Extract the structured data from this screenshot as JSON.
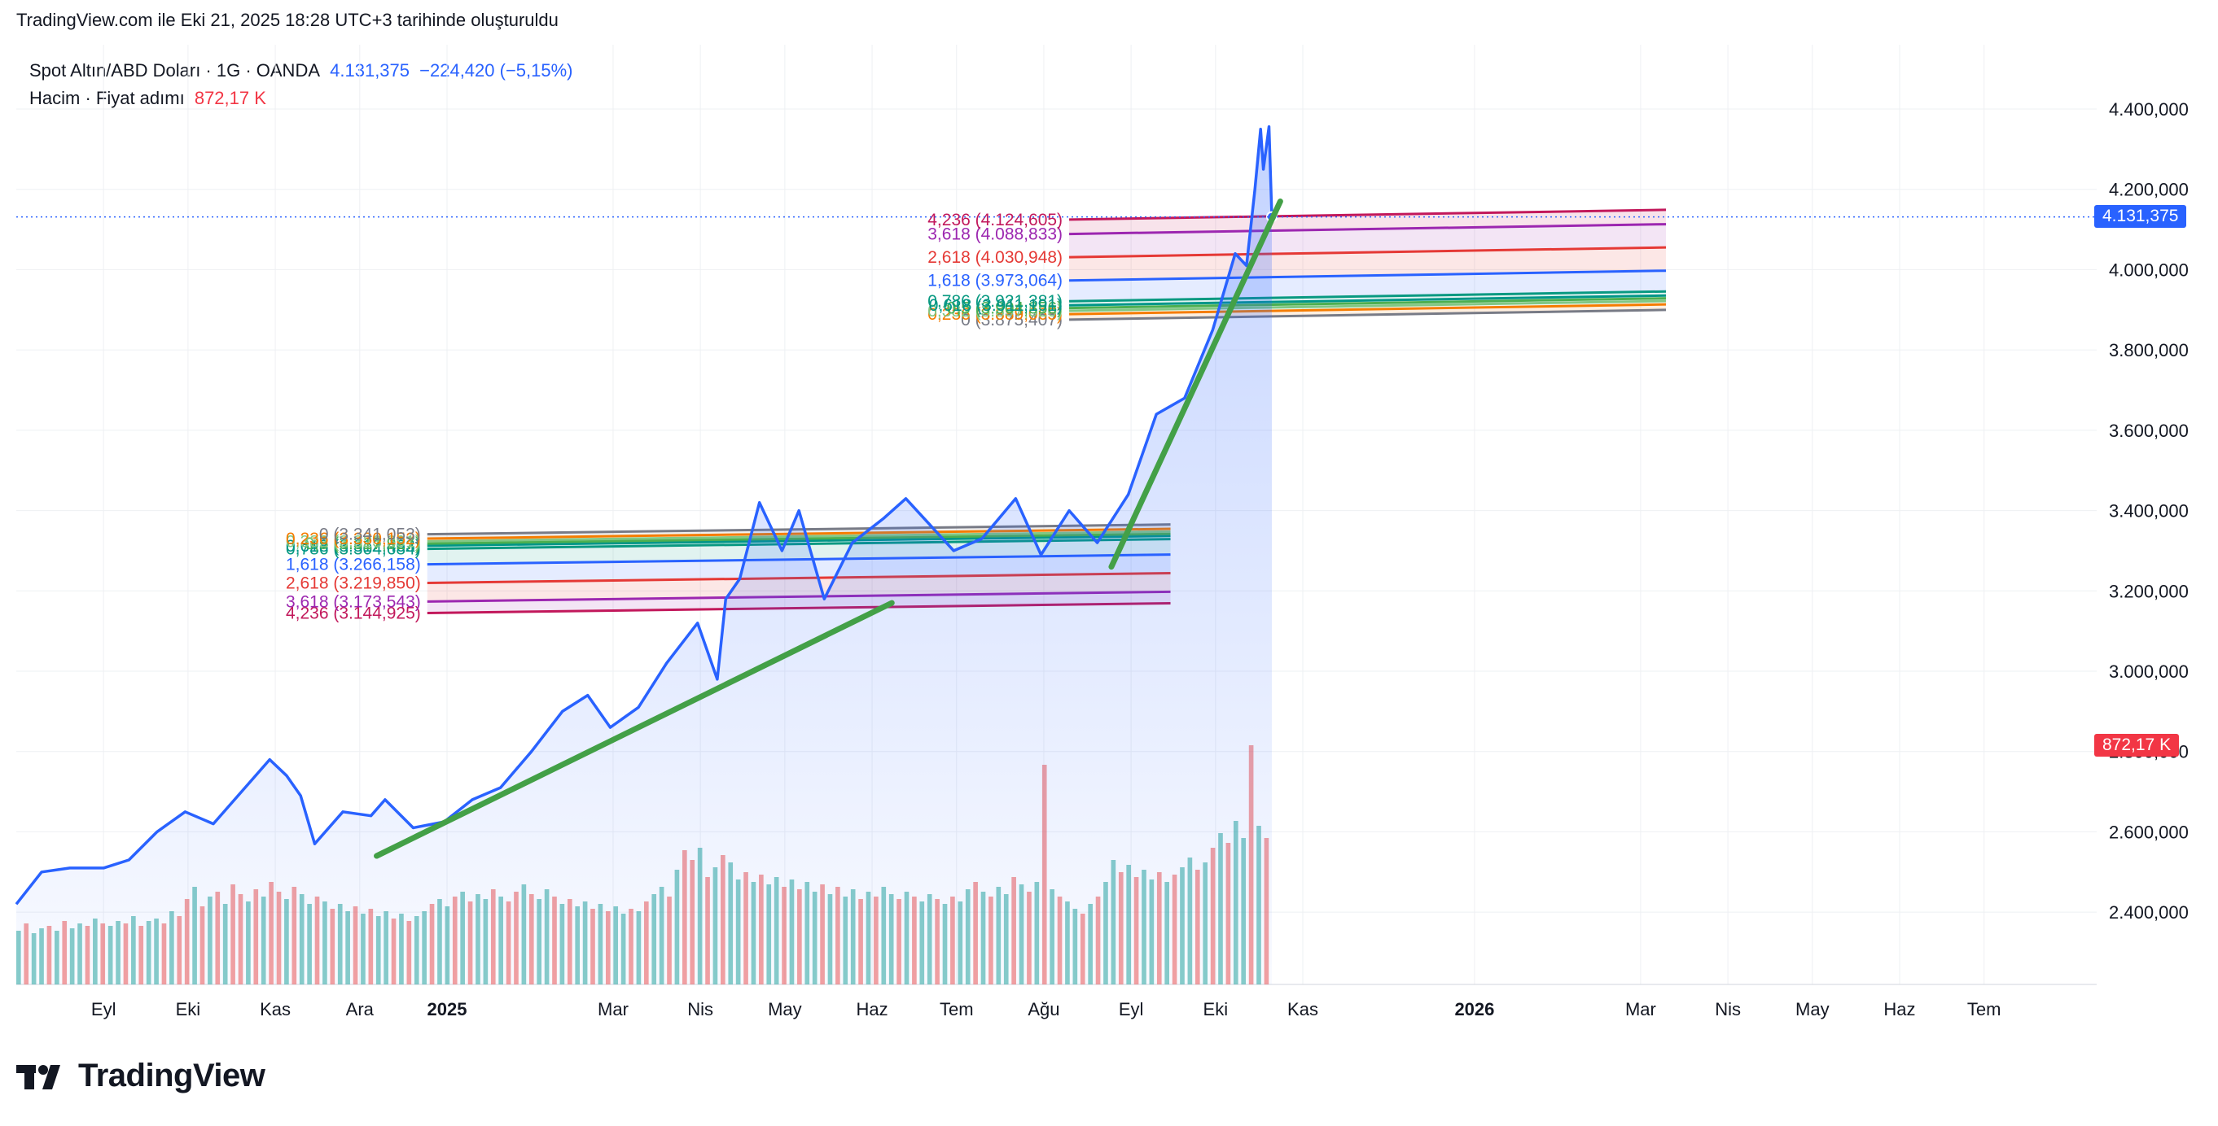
{
  "header": {
    "text": "TradingView.com ile Eki 21, 2025 18:28 UTC+3 tarihinde oluşturuldu"
  },
  "legend": {
    "symbol": "Spot Altın/ABD Doları · 1G · OANDA",
    "last": "4.131,375",
    "change": "−224,420 (−5,15%)",
    "volume_label": "Hacim · Fiyat adımı",
    "volume_value": "872,17 K"
  },
  "brand": {
    "name": "TradingView"
  },
  "colors": {
    "price_line": "#2962ff",
    "price_fill": "#2962ff",
    "trendline": "#43a047",
    "vol_up": "#26a69a",
    "vol_down": "#ef5350",
    "grid": "#eef0f3",
    "axis_text": "#131722",
    "last_badge": "#2962ff",
    "vol_badge": "#f23645"
  },
  "chart_data": {
    "type": "line",
    "title": "Spot Altın/ABD Doları · 1G · OANDA",
    "y_axis": {
      "min": 2220000,
      "max": 4560000,
      "ticks": [
        2400000,
        2600000,
        2800000,
        3000000,
        3200000,
        3400000,
        3600000,
        3800000,
        4000000,
        4200000,
        4400000
      ],
      "tick_labels": [
        "2.400,000",
        "2.600,000",
        "2.800,000",
        "3.000,000",
        "3.200,000",
        "3.400,000",
        "3.600,000",
        "3.800,000",
        "4.000,000",
        "4.200,000",
        "4.400,000"
      ]
    },
    "x_axis": {
      "ticks": [
        "2024-09-01",
        "2024-10-01",
        "2024-11-01",
        "2024-12-01",
        "2025-01-01",
        "2025-03-01",
        "2025-04-01",
        "2025-05-01",
        "2025-06-01",
        "2025-07-01",
        "2025-08-01",
        "2025-09-01",
        "2025-10-01",
        "2025-11-01",
        "2026-01-01",
        "2026-03-01",
        "2026-04-01",
        "2026-05-01",
        "2026-06-01",
        "2026-07-01"
      ],
      "tick_labels": [
        "Eyl",
        "Eki",
        "Kas",
        "Ara",
        "2025",
        "Mar",
        "Nis",
        "May",
        "Haz",
        "Tem",
        "Ağu",
        "Eyl",
        "Eki",
        "Kas",
        "2026",
        "Mar",
        "Nis",
        "May",
        "Haz",
        "Tem"
      ],
      "bold": [
        "2025",
        "2026"
      ]
    },
    "series": [
      {
        "points": [
          [
            "2024-08-01",
            2420000
          ],
          [
            "2024-08-10",
            2500000
          ],
          [
            "2024-08-20",
            2510000
          ],
          [
            "2024-09-01",
            2510000
          ],
          [
            "2024-09-10",
            2530000
          ],
          [
            "2024-09-20",
            2600000
          ],
          [
            "2024-09-30",
            2650000
          ],
          [
            "2024-10-10",
            2620000
          ],
          [
            "2024-10-20",
            2700000
          ],
          [
            "2024-10-30",
            2780000
          ],
          [
            "2024-11-05",
            2740000
          ],
          [
            "2024-11-10",
            2690000
          ],
          [
            "2024-11-15",
            2570000
          ],
          [
            "2024-11-25",
            2650000
          ],
          [
            "2024-12-05",
            2640000
          ],
          [
            "2024-12-10",
            2680000
          ],
          [
            "2024-12-20",
            2610000
          ],
          [
            "2024-12-31",
            2625000
          ],
          [
            "2025-01-10",
            2680000
          ],
          [
            "2025-01-20",
            2710000
          ],
          [
            "2025-01-31",
            2800000
          ],
          [
            "2025-02-11",
            2900000
          ],
          [
            "2025-02-20",
            2940000
          ],
          [
            "2025-02-28",
            2860000
          ],
          [
            "2025-03-10",
            2910000
          ],
          [
            "2025-03-20",
            3020000
          ],
          [
            "2025-03-31",
            3120000
          ],
          [
            "2025-04-07",
            2980000
          ],
          [
            "2025-04-10",
            3180000
          ],
          [
            "2025-04-15",
            3230000
          ],
          [
            "2025-04-22",
            3420000
          ],
          [
            "2025-04-30",
            3300000
          ],
          [
            "2025-05-06",
            3400000
          ],
          [
            "2025-05-15",
            3180000
          ],
          [
            "2025-05-25",
            3320000
          ],
          [
            "2025-06-05",
            3380000
          ],
          [
            "2025-06-13",
            3430000
          ],
          [
            "2025-06-30",
            3300000
          ],
          [
            "2025-07-10",
            3330000
          ],
          [
            "2025-07-22",
            3430000
          ],
          [
            "2025-07-31",
            3290000
          ],
          [
            "2025-08-10",
            3400000
          ],
          [
            "2025-08-20",
            3320000
          ],
          [
            "2025-08-31",
            3440000
          ],
          [
            "2025-09-10",
            3640000
          ],
          [
            "2025-09-20",
            3680000
          ],
          [
            "2025-09-30",
            3850000
          ],
          [
            "2025-10-08",
            4040000
          ],
          [
            "2025-10-12",
            4010000
          ],
          [
            "2025-10-15",
            4200000
          ],
          [
            "2025-10-17",
            4350000
          ],
          [
            "2025-10-18",
            4250000
          ],
          [
            "2025-10-20",
            4356000
          ],
          [
            "2025-10-21",
            4131375
          ]
        ]
      }
    ],
    "volume": {
      "latest_label": "872,17 K",
      "values": [
        0.22,
        0.25,
        0.21,
        0.23,
        0.24,
        0.22,
        0.26,
        0.23,
        0.25,
        0.24,
        0.27,
        0.25,
        0.24,
        0.26,
        0.25,
        0.28,
        0.24,
        0.26,
        0.27,
        0.25,
        0.3,
        0.28,
        0.35,
        0.4,
        0.32,
        0.36,
        0.38,
        0.33,
        0.41,
        0.37,
        0.34,
        0.39,
        0.36,
        0.42,
        0.38,
        0.35,
        0.4,
        0.37,
        0.33,
        0.36,
        0.34,
        0.31,
        0.33,
        0.3,
        0.32,
        0.29,
        0.31,
        0.28,
        0.3,
        0.27,
        0.29,
        0.26,
        0.28,
        0.3,
        0.33,
        0.35,
        0.32,
        0.36,
        0.38,
        0.34,
        0.37,
        0.35,
        0.39,
        0.36,
        0.34,
        0.38,
        0.41,
        0.37,
        0.35,
        0.39,
        0.36,
        0.33,
        0.35,
        0.32,
        0.34,
        0.31,
        0.33,
        0.3,
        0.32,
        0.29,
        0.31,
        0.3,
        0.34,
        0.37,
        0.4,
        0.36,
        0.47,
        0.55,
        0.51,
        0.56,
        0.44,
        0.48,
        0.53,
        0.5,
        0.43,
        0.46,
        0.42,
        0.45,
        0.41,
        0.44,
        0.4,
        0.43,
        0.39,
        0.42,
        0.38,
        0.41,
        0.37,
        0.4,
        0.36,
        0.39,
        0.35,
        0.38,
        0.36,
        0.4,
        0.37,
        0.35,
        0.38,
        0.36,
        0.34,
        0.37,
        0.35,
        0.33,
        0.36,
        0.34,
        0.39,
        0.42,
        0.38,
        0.36,
        0.4,
        0.37,
        0.44,
        0.41,
        0.38,
        0.42,
        0.9,
        0.39,
        0.36,
        0.34,
        0.31,
        0.29,
        0.33,
        0.36,
        0.42,
        0.51,
        0.46,
        0.49,
        0.44,
        0.47,
        0.43,
        0.46,
        0.42,
        0.45,
        0.48,
        0.52,
        0.47,
        0.5,
        0.56,
        0.62,
        0.58,
        0.67,
        0.6,
        0.98,
        0.65,
        0.6
      ],
      "up": [
        1,
        0,
        1,
        1,
        0,
        1,
        0,
        1,
        1,
        0,
        1,
        0,
        1,
        1,
        0,
        1,
        0,
        1,
        1,
        0,
        1,
        0,
        0,
        1,
        0,
        1,
        0,
        1,
        0,
        0,
        1,
        0,
        1,
        0,
        0,
        1,
        0,
        1,
        1,
        0,
        1,
        0,
        1,
        1,
        0,
        1,
        0,
        1,
        1,
        0,
        1,
        0,
        1,
        1,
        0,
        1,
        1,
        0,
        1,
        0,
        1,
        1,
        0,
        1,
        0,
        0,
        1,
        0,
        1,
        1,
        0,
        1,
        0,
        1,
        1,
        0,
        1,
        0,
        1,
        1,
        0,
        1,
        0,
        1,
        1,
        0,
        1,
        0,
        0,
        1,
        0,
        1,
        0,
        1,
        1,
        0,
        1,
        0,
        1,
        1,
        0,
        1,
        0,
        1,
        1,
        0,
        1,
        0,
        1,
        1,
        0,
        1,
        0,
        1,
        1,
        0,
        1,
        0,
        1,
        1,
        0,
        1,
        0,
        1,
        1,
        0,
        1,
        0,
        1,
        1,
        0,
        1,
        0,
        1,
        0,
        1,
        0,
        1,
        1,
        0,
        1,
        0,
        1,
        1,
        0,
        1,
        0,
        1,
        1,
        0,
        1,
        0,
        1,
        1,
        0,
        1,
        0,
        1,
        0,
        1,
        1,
        0,
        1,
        0,
        1,
        0,
        1,
        0,
        0,
        1
      ]
    },
    "fib_lower": {
      "start": "2024-12-25",
      "end": "2025-09-15",
      "levels": [
        {
          "label": "4,236 (3.144,925)",
          "price": 3144925,
          "color": "#c2185b"
        },
        {
          "label": "3,618 (3.173,543)",
          "price": 3173543,
          "color": "#9c27b0"
        },
        {
          "label": "2,618 (3.219,850)",
          "price": 3219850,
          "color": "#e53935"
        },
        {
          "label": "1,618 (3.266,158)",
          "price": 3266158,
          "color": "#2962ff"
        },
        {
          "label": "0,786 (3.304,684)",
          "price": 3304684,
          "color": "#089981"
        },
        {
          "label": "0,618 (3.312,463)",
          "price": 3312463,
          "color": "#009688"
        },
        {
          "label": "0,5 (3.317,927)",
          "price": 3317927,
          "color": "#4caf50"
        },
        {
          "label": "0,382 (3.323,391)",
          "price": 3323391,
          "color": "#81c784"
        },
        {
          "label": "0,236 (3.330,152)",
          "price": 3330152,
          "color": "#f57c00"
        },
        {
          "label": "0 (3.341,053)",
          "price": 3341053,
          "color": "#787b86"
        }
      ]
    },
    "fib_upper": {
      "start": "2025-08-10",
      "end": "2026-03-10",
      "levels": [
        {
          "label": "0 (3.875,407)",
          "price": 3875407,
          "color": "#787b86"
        },
        {
          "label": "0,236 (3.889,065)",
          "price": 3889065,
          "color": "#f57c00"
        },
        {
          "label": "0,382 (3.897,520)",
          "price": 3897520,
          "color": "#81c784"
        },
        {
          "label": "0,5 (3.904,356)",
          "price": 3904356,
          "color": "#4caf50"
        },
        {
          "label": "0,618 (3.911,191)",
          "price": 3911191,
          "color": "#009688"
        },
        {
          "label": "0,786 (3.921,381)",
          "price": 3921381,
          "color": "#089981"
        },
        {
          "label": "1,618 (3.973,064)",
          "price": 3973064,
          "color": "#2962ff"
        },
        {
          "label": "2,618 (4.030,948)",
          "price": 4030948,
          "color": "#e53935"
        },
        {
          "label": "3,618 (4.088,833)",
          "price": 4088833,
          "color": "#9c27b0"
        },
        {
          "label": "4,236 (4.124,605)",
          "price": 4124605,
          "color": "#c2185b"
        }
      ]
    },
    "trendlines": [
      {
        "from": [
          "2024-12-07",
          2540000
        ],
        "to": [
          "2025-06-08",
          3170000
        ]
      },
      {
        "from": [
          "2025-08-25",
          3260000
        ],
        "to": [
          "2025-10-24",
          4170000
        ]
      }
    ],
    "last_price": {
      "value": 4131375,
      "label": "4.131,375"
    }
  }
}
